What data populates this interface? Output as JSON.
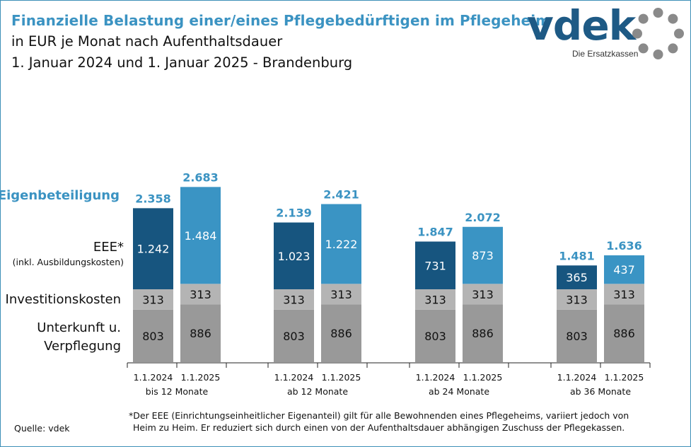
{
  "header": {
    "title": "Finanzielle Belastung einer/eines Pflegebedürftigen im Pflegeheim",
    "subtitle_line1": "in EUR je Monat nach Aufenthaltsdauer",
    "subtitle_line2": "1. Januar 2024 und 1. Januar 2025 - Brandenburg"
  },
  "logo": {
    "text": "vdek",
    "tagline": "Die Ersatzkassen"
  },
  "legend": {
    "eigenbeteiligung": "Eigenbeteiligung",
    "eee": "EEE*",
    "eee_sub": "(inkl. Ausbildungskosten)",
    "investition": "Investitionskosten",
    "unterkunft_line1": "Unterkunft u.",
    "unterkunft_line2": "Verpflegung"
  },
  "colors": {
    "eee_2024": "#17557f",
    "eee_2025": "#3a94c4",
    "investition": "#b4b4b4",
    "unterkunft": "#999999",
    "total_label": "#3b93c2",
    "axis": "#222222"
  },
  "footnote": {
    "line1": "*Der EEE (Einrichtungseinheitlicher Eigenanteil) gilt für alle Bewohnenden eines Pflegeheims, variiert jedoch von",
    "line2": "Heim zu Heim. Er reduziert sich durch einen von der Aufenthaltsdauer abhängigen Zuschuss der Pflegekassen."
  },
  "source": "Quelle: vdek",
  "chart_data": {
    "type": "bar",
    "stacked": true,
    "groups": [
      "bis 12 Monate",
      "ab 12 Monate",
      "ab 24 Monate",
      "ab 36 Monate"
    ],
    "bar_labels": [
      "1.1.2024",
      "1.1.2025"
    ],
    "series": [
      {
        "name": "Unterkunft u. Verpflegung",
        "values": [
          [
            803,
            886
          ],
          [
            803,
            886
          ],
          [
            803,
            886
          ],
          [
            803,
            886
          ]
        ],
        "labels": [
          [
            "803",
            "886"
          ],
          [
            "803",
            "886"
          ],
          [
            "803",
            "886"
          ],
          [
            "803",
            "886"
          ]
        ]
      },
      {
        "name": "Investitionskosten",
        "values": [
          [
            313,
            313
          ],
          [
            313,
            313
          ],
          [
            313,
            313
          ],
          [
            313,
            313
          ]
        ],
        "labels": [
          [
            "313",
            "313"
          ],
          [
            "313",
            "313"
          ],
          [
            "313",
            "313"
          ],
          [
            "313",
            "313"
          ]
        ]
      },
      {
        "name": "EEE*",
        "values": [
          [
            1242,
            1484
          ],
          [
            1023,
            1222
          ],
          [
            731,
            873
          ],
          [
            365,
            437
          ]
        ],
        "labels": [
          [
            "1.242",
            "1.484"
          ],
          [
            "1.023",
            "1.222"
          ],
          [
            "731",
            "873"
          ],
          [
            "365",
            "437"
          ]
        ]
      }
    ],
    "totals": [
      [
        2358,
        2683
      ],
      [
        2139,
        2421
      ],
      [
        1847,
        2072
      ],
      [
        1481,
        1636
      ]
    ],
    "total_labels": [
      [
        "2.358",
        "2.683"
      ],
      [
        "2.139",
        "2.421"
      ],
      [
        "1.847",
        "2.072"
      ],
      [
        "1.481",
        "1.636"
      ]
    ]
  }
}
